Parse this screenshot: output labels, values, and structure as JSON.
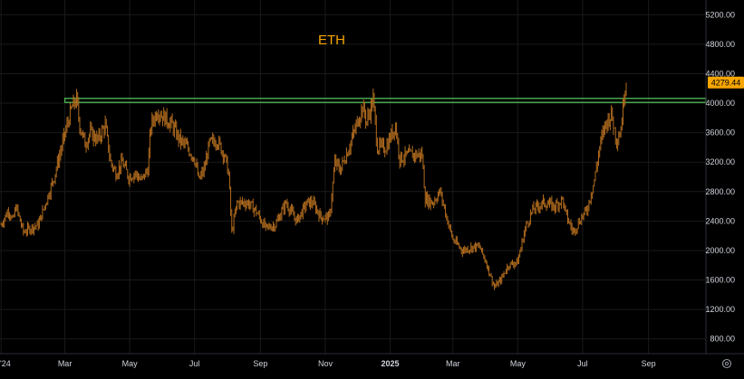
{
  "chart_data": {
    "type": "candlestick",
    "title": "ETH",
    "last_price_label": "4279.44",
    "y_ticks": [
      "5200.00",
      "4800.00",
      "4400.00",
      "4000.00",
      "3600.00",
      "3200.00",
      "2800.00",
      "2400.00",
      "2000.00",
      "1600.00",
      "1200.00",
      "800.00"
    ],
    "y_tick_values": [
      5200,
      4800,
      4400,
      4000,
      3600,
      3200,
      2800,
      2400,
      2000,
      1600,
      1200,
      800
    ],
    "x_ticks": [
      "'24",
      "Mar",
      "May",
      "Jul",
      "Sep",
      "Nov",
      "2025",
      "Mar",
      "May",
      "Jul",
      "Sep"
    ],
    "x_tick_values": [
      "2024-01-01",
      "2024-03-01",
      "2024-05-01",
      "2024-07-01",
      "2024-09-01",
      "2024-11-01",
      "2025-01-01",
      "2025-03-01",
      "2025-05-01",
      "2025-07-01",
      "2025-09-01"
    ],
    "bold_x_ticks": [
      "2025"
    ],
    "ylim": [
      600,
      5400
    ],
    "xlim": [
      "2023-12-31",
      "2025-10-25"
    ],
    "grid": true,
    "resistance_band": {
      "low": 4010,
      "high": 4065,
      "from": "2024-03-01",
      "to": "2025-10-25"
    },
    "series": [
      {
        "values": [
          [
            "2024-01-01",
            2350
          ],
          [
            "2024-01-08",
            2550
          ],
          [
            "2024-01-12",
            2400
          ],
          [
            "2024-01-15",
            2600
          ],
          [
            "2024-01-22",
            2250
          ],
          [
            "2024-01-28",
            2300
          ],
          [
            "2024-02-05",
            2350
          ],
          [
            "2024-02-12",
            2650
          ],
          [
            "2024-02-19",
            2950
          ],
          [
            "2024-02-26",
            3350
          ],
          [
            "2024-03-04",
            3750
          ],
          [
            "2024-03-08",
            3950
          ],
          [
            "2024-03-12",
            4050
          ],
          [
            "2024-03-15",
            3700
          ],
          [
            "2024-03-20",
            3450
          ],
          [
            "2024-03-25",
            3600
          ],
          [
            "2024-04-01",
            3500
          ],
          [
            "2024-04-08",
            3700
          ],
          [
            "2024-04-13",
            3200
          ],
          [
            "2024-04-18",
            3050
          ],
          [
            "2024-04-24",
            3200
          ],
          [
            "2024-04-30",
            3000
          ],
          [
            "2024-05-06",
            3050
          ],
          [
            "2024-05-12",
            2950
          ],
          [
            "2024-05-18",
            3100
          ],
          [
            "2024-05-21",
            3700
          ],
          [
            "2024-05-27",
            3900
          ],
          [
            "2024-06-03",
            3800
          ],
          [
            "2024-06-10",
            3700
          ],
          [
            "2024-06-17",
            3500
          ],
          [
            "2024-06-24",
            3400
          ],
          [
            "2024-07-01",
            3250
          ],
          [
            "2024-07-05",
            2950
          ],
          [
            "2024-07-10",
            3100
          ],
          [
            "2024-07-15",
            3450
          ],
          [
            "2024-07-22",
            3500
          ],
          [
            "2024-07-29",
            3300
          ],
          [
            "2024-08-02",
            3050
          ],
          [
            "2024-08-05",
            2250
          ],
          [
            "2024-08-10",
            2650
          ],
          [
            "2024-08-20",
            2650
          ],
          [
            "2024-08-27",
            2550
          ],
          [
            "2024-09-06",
            2300
          ],
          [
            "2024-09-15",
            2350
          ],
          [
            "2024-09-25",
            2650
          ],
          [
            "2024-10-05",
            2400
          ],
          [
            "2024-10-15",
            2650
          ],
          [
            "2024-10-20",
            2650
          ],
          [
            "2024-10-28",
            2450
          ],
          [
            "2024-11-05",
            2450
          ],
          [
            "2024-11-10",
            3200
          ],
          [
            "2024-11-15",
            3100
          ],
          [
            "2024-11-22",
            3350
          ],
          [
            "2024-11-28",
            3600
          ],
          [
            "2024-12-06",
            3950
          ],
          [
            "2024-12-10",
            3750
          ],
          [
            "2024-12-16",
            4050
          ],
          [
            "2024-12-20",
            3400
          ],
          [
            "2024-12-28",
            3400
          ],
          [
            "2025-01-06",
            3700
          ],
          [
            "2025-01-10",
            3250
          ],
          [
            "2025-01-20",
            3300
          ],
          [
            "2025-01-31",
            3300
          ],
          [
            "2025-02-03",
            2700
          ],
          [
            "2025-02-10",
            2650
          ],
          [
            "2025-02-17",
            2800
          ],
          [
            "2025-02-24",
            2400
          ],
          [
            "2025-03-01",
            2150
          ],
          [
            "2025-03-10",
            2000
          ],
          [
            "2025-03-20",
            2050
          ],
          [
            "2025-03-26",
            2050
          ],
          [
            "2025-04-01",
            1850
          ],
          [
            "2025-04-09",
            1500
          ],
          [
            "2025-04-15",
            1600
          ],
          [
            "2025-04-22",
            1800
          ],
          [
            "2025-05-01",
            1850
          ],
          [
            "2025-05-08",
            2300
          ],
          [
            "2025-05-15",
            2550
          ],
          [
            "2025-05-25",
            2650
          ],
          [
            "2025-06-05",
            2600
          ],
          [
            "2025-06-12",
            2700
          ],
          [
            "2025-06-15",
            2500
          ],
          [
            "2025-06-22",
            2250
          ],
          [
            "2025-06-30",
            2450
          ],
          [
            "2025-07-05",
            2550
          ],
          [
            "2025-07-12",
            2950
          ],
          [
            "2025-07-17",
            3400
          ],
          [
            "2025-07-22",
            3700
          ],
          [
            "2025-07-28",
            3850
          ],
          [
            "2025-08-02",
            3500
          ],
          [
            "2025-08-06",
            3650
          ],
          [
            "2025-08-09",
            4100
          ],
          [
            "2025-08-11",
            4279.44
          ]
        ]
      }
    ],
    "colors": {
      "background": "#000000",
      "price": "#b06b1e",
      "title": "#f7a600",
      "resistance": "#4caf50",
      "price_tag_bg": "#f7a600",
      "price_tag_text": "#000000",
      "axis_text": "#d1d4dc"
    }
  },
  "controls": {
    "settings_icon": "gear-icon"
  }
}
